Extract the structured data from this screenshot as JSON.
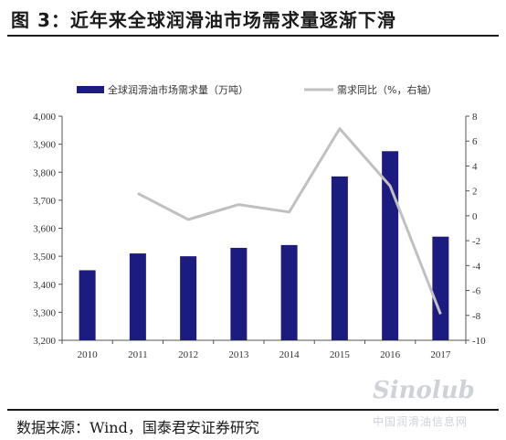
{
  "figure": {
    "title": "图 3：近年来全球润滑油市场需求量逐渐下滑",
    "source": "数据来源：Wind，国泰君安证券研究"
  },
  "watermark": {
    "logo_text": "Sinolub.com",
    "sub_text": "中国润滑油信息网"
  },
  "chart_data": {
    "type": "bar",
    "categories": [
      "2010",
      "2011",
      "2012",
      "2013",
      "2014",
      "2015",
      "2016",
      "2017"
    ],
    "series": [
      {
        "name": "全球润滑油市场需求量（万吨）",
        "type": "bar",
        "axis": "left",
        "color": "#1c1c80",
        "values": [
          3450,
          3510,
          3500,
          3530,
          3540,
          3785,
          3875,
          3570
        ]
      },
      {
        "name": "需求同比（%，右轴）",
        "type": "line",
        "axis": "right",
        "color": "#c0c0c0",
        "values": [
          null,
          1.8,
          -0.3,
          0.9,
          0.3,
          7.0,
          2.4,
          -7.9
        ]
      }
    ],
    "y_left": {
      "min": 3200,
      "max": 4000,
      "ticks": [
        "3,200",
        "3,300",
        "3,400",
        "3,500",
        "3,600",
        "3,700",
        "3,800",
        "3,900",
        "4,000"
      ]
    },
    "y_right": {
      "min": -10,
      "max": 8,
      "ticks": [
        "-10",
        "-8",
        "-6",
        "-4",
        "-2",
        "0",
        "2",
        "4",
        "6",
        "8"
      ]
    },
    "legend_position": "top",
    "grid": false
  }
}
